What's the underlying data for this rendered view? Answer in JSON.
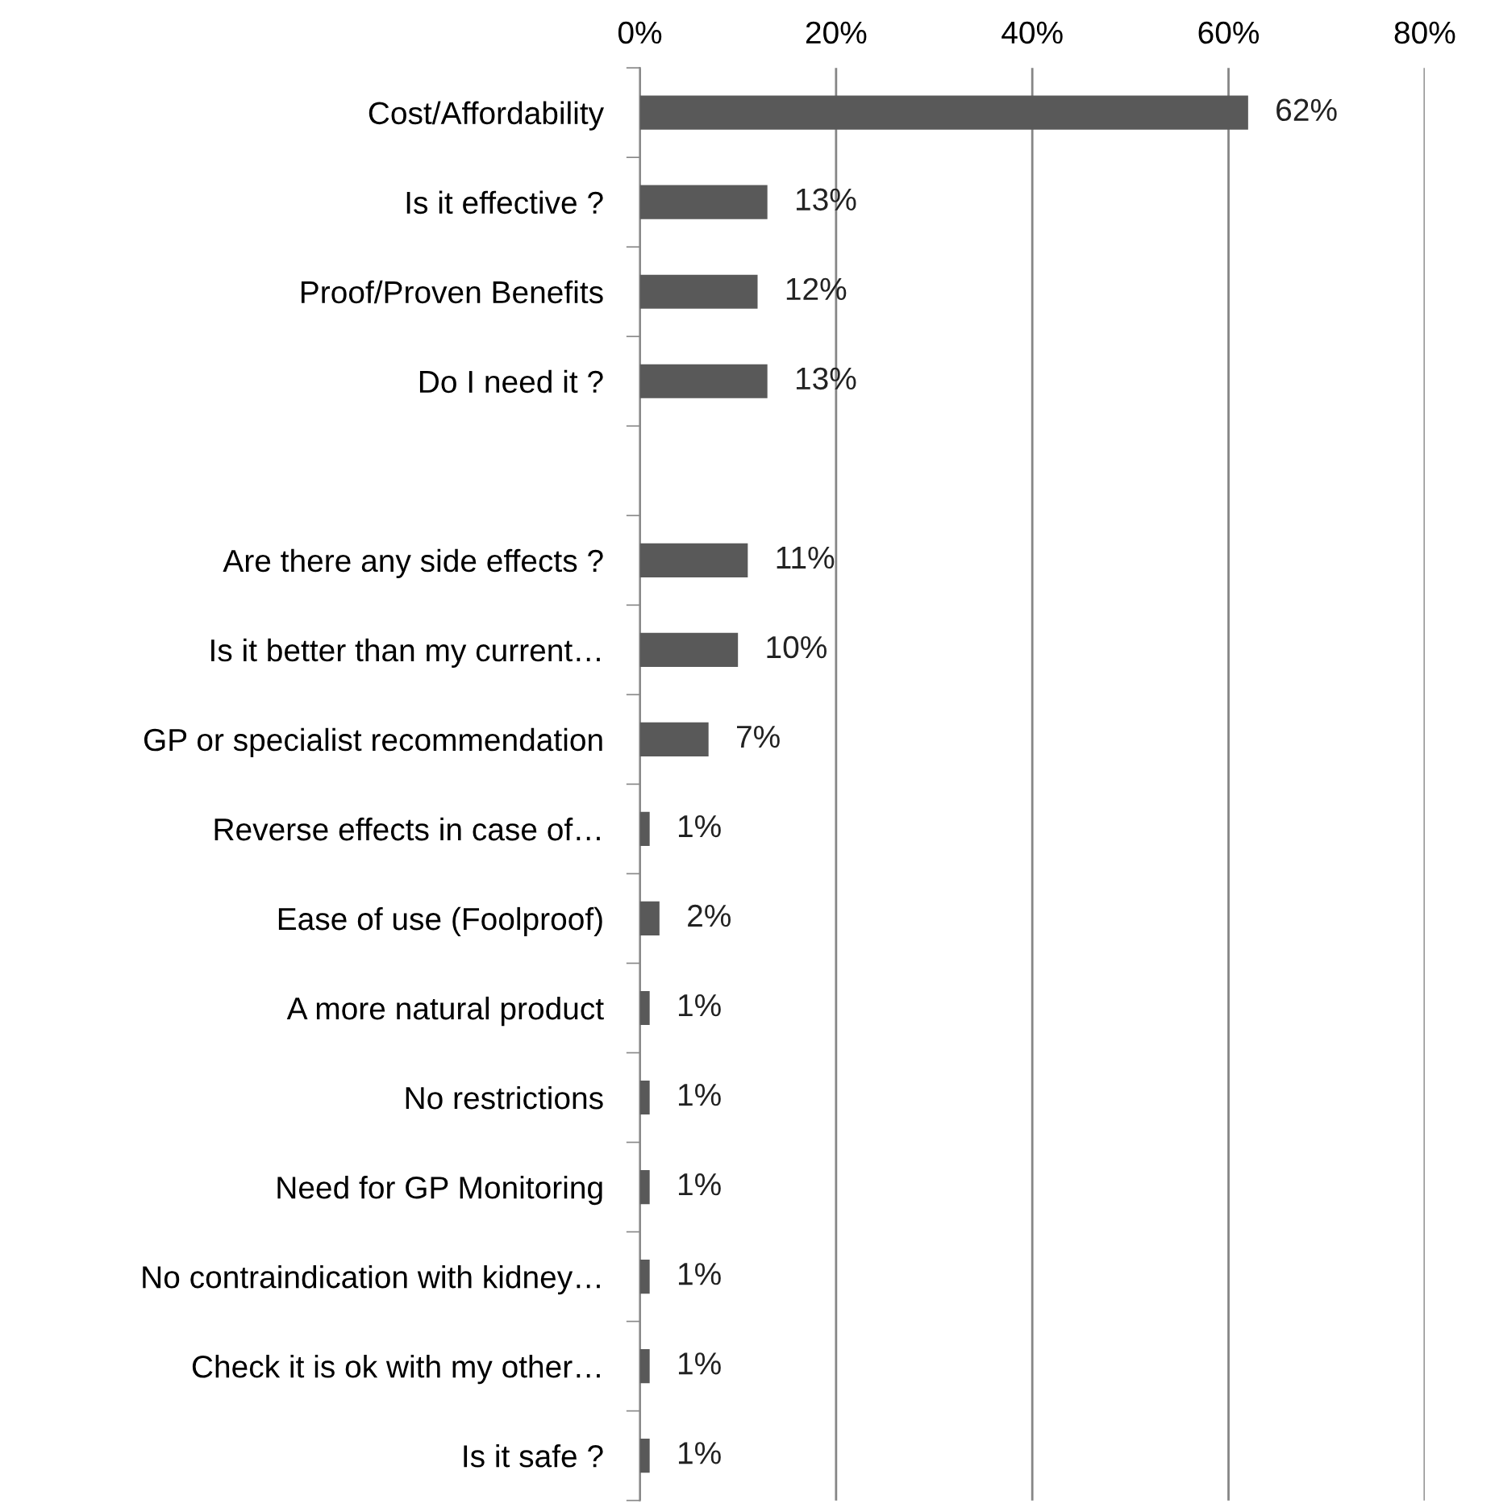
{
  "chart_data": {
    "type": "bar",
    "orientation": "horizontal",
    "categories": [
      "Cost/Affordability",
      "Is it effective ?",
      "Proof/Proven Benefits",
      "Do I need it ?",
      null,
      "Are there any side effects ?",
      "Is it better than my current…",
      "GP or specialist recommendation",
      "Reverse effects in case of…",
      "Ease of use (Foolproof)",
      "A more natural product",
      "No restrictions",
      "Need for GP Monitoring",
      "No contraindication with kidney…",
      "Check it is ok with my other…",
      "Is it safe ?"
    ],
    "values": [
      62,
      13,
      12,
      13,
      null,
      11,
      10,
      7,
      1,
      2,
      1,
      1,
      1,
      1,
      1,
      1
    ],
    "value_labels": [
      "62%",
      "13%",
      "12%",
      "13%",
      null,
      "11%",
      "10%",
      "7%",
      "1%",
      "2%",
      "1%",
      "1%",
      "1%",
      "1%",
      "1%",
      "1%"
    ],
    "color": "#595959",
    "xlim": [
      0,
      80
    ],
    "xticks": [
      {
        "value": 0,
        "label": "0%"
      },
      {
        "value": 20,
        "label": "20%"
      },
      {
        "value": 40,
        "label": "40%"
      },
      {
        "value": 60,
        "label": "60%"
      },
      {
        "value": 80,
        "label": "80%"
      }
    ],
    "grid": "x",
    "legend": false
  }
}
